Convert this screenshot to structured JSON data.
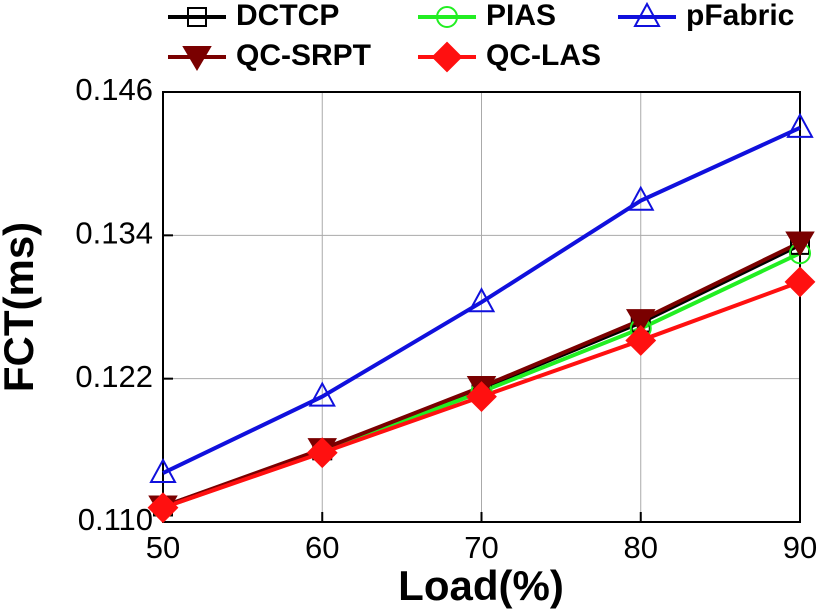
{
  "chart_data": {
    "type": "line",
    "x": [
      50,
      60,
      70,
      80,
      90
    ],
    "xlabel": "Load(%)",
    "ylabel": "FCT(ms)",
    "xlim": [
      50,
      90
    ],
    "xticks": [
      50,
      60,
      70,
      80,
      90
    ],
    "ylim": [
      0.11,
      0.146
    ],
    "yticks": [
      {
        "value": 0.11,
        "label": "0.110"
      },
      0.122,
      0.134,
      0.146
    ],
    "grid": true,
    "series": [
      {
        "name": "DCTCP",
        "color": "#000000",
        "marker": "square",
        "values": [
          0.1113,
          0.116,
          0.1212,
          0.1267,
          0.1332
        ]
      },
      {
        "name": "PIAS",
        "color": "#22ee22",
        "marker": "circle",
        "values": [
          0.1112,
          0.1159,
          0.1209,
          0.1262,
          0.1325
        ]
      },
      {
        "name": "pFabric",
        "color": "#1010dd",
        "marker": "triangle",
        "values": [
          0.1141,
          0.1205,
          0.1284,
          0.1369,
          0.143
        ]
      },
      {
        "name": "QC-SRPT",
        "color": "#7a0000",
        "marker": "down-triangle",
        "values": [
          0.1113,
          0.1161,
          0.1213,
          0.1269,
          0.1334
        ]
      },
      {
        "name": "QC-LAS",
        "color": "#ff1010",
        "marker": "diamond",
        "values": [
          0.1112,
          0.1158,
          0.1205,
          0.1252,
          0.1301
        ]
      }
    ]
  }
}
